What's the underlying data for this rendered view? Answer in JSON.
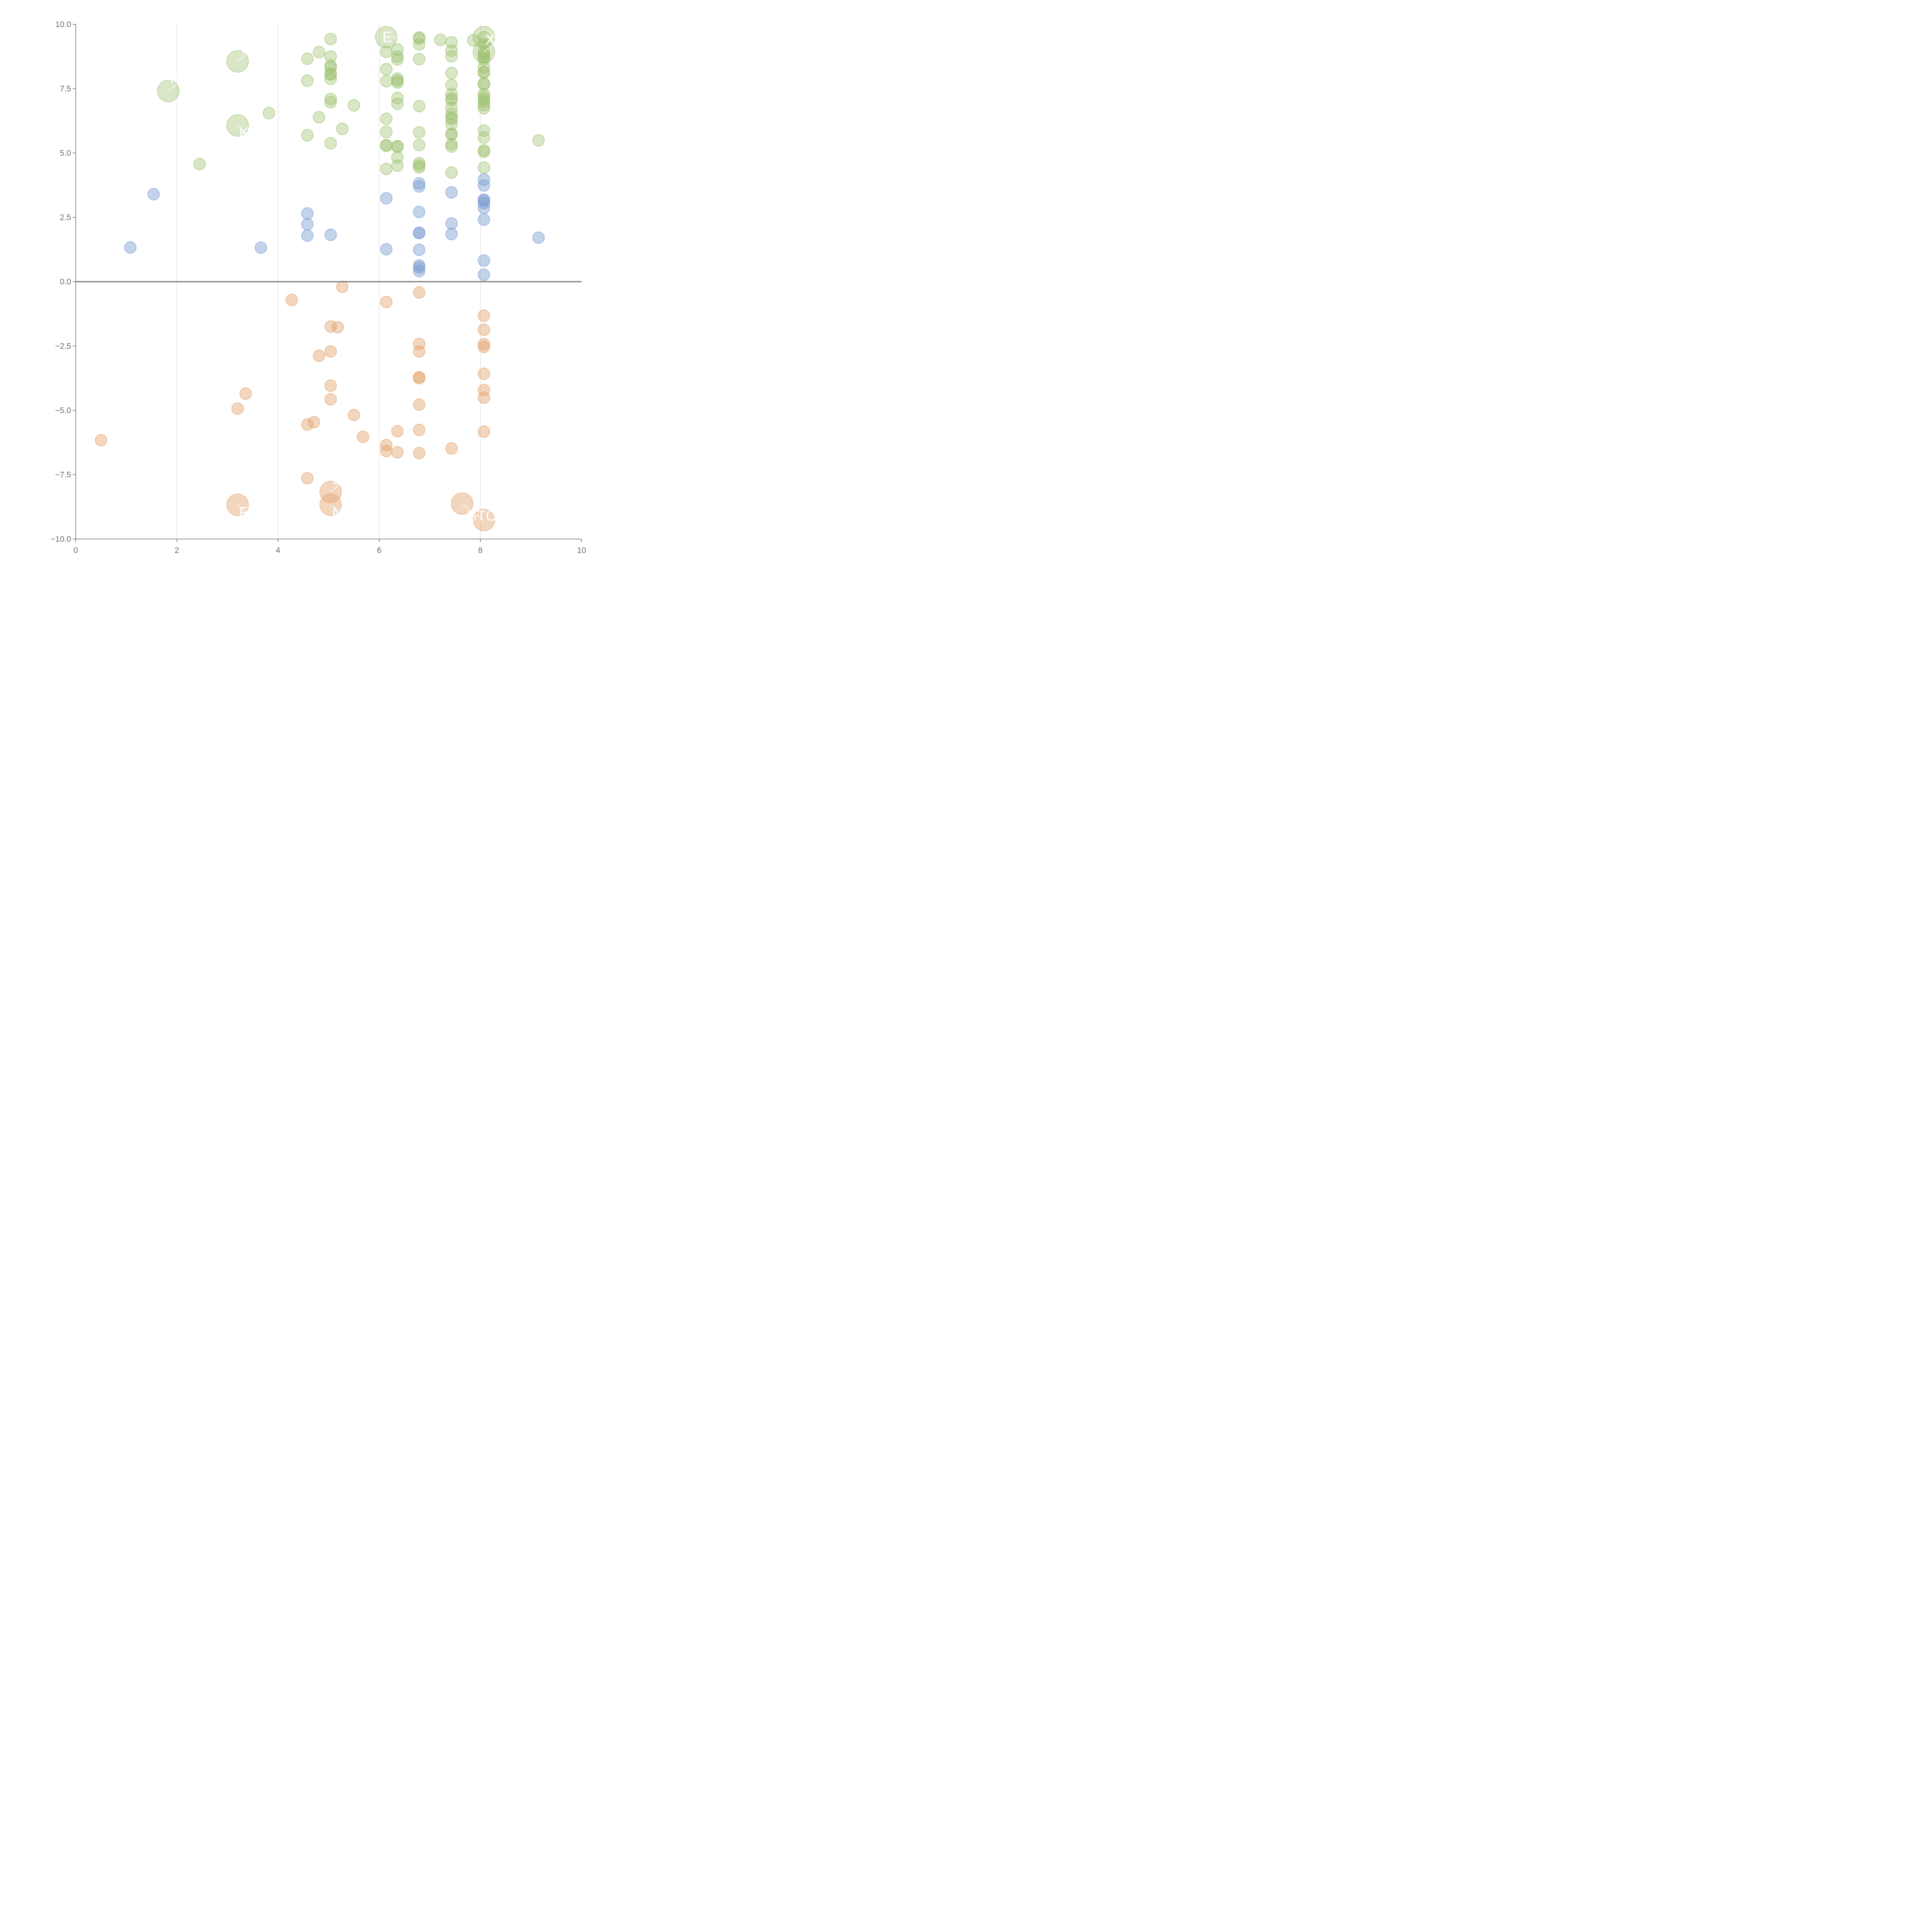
{
  "chart_data": {
    "type": "scatter",
    "title": "",
    "xlabel": "",
    "ylabel": "",
    "xlim": [
      0,
      10
    ],
    "ylim": [
      -10,
      10
    ],
    "x_ticks": [
      "0",
      "2",
      "4",
      "6",
      "8",
      "10"
    ],
    "y_ticks": [
      "10.0",
      "7.5",
      "5.0",
      "2.5",
      "0.0",
      "−2.5",
      "−5.0",
      "−7.5",
      "−10.0"
    ],
    "y_tick_values": [
      10,
      7.5,
      5,
      2.5,
      0,
      -2.5,
      -5,
      -7.5,
      -10
    ],
    "x_tick_values": [
      0,
      2,
      4,
      6,
      8,
      10
    ],
    "vertical_gridlines": [
      2,
      4,
      6,
      8
    ],
    "reference_line": 0,
    "series": [
      {
        "name": "green",
        "color": "#9abf6b",
        "fill": "rgba(154,191,107,0.38)",
        "points": [
          [
            2.45,
            4.57
          ],
          [
            3.82,
            6.55
          ],
          [
            4.58,
            8.66
          ],
          [
            4.58,
            7.81
          ],
          [
            4.58,
            5.69
          ],
          [
            4.81,
            8.92
          ],
          [
            4.81,
            6.39
          ],
          [
            5.04,
            9.43
          ],
          [
            5.04,
            8.75
          ],
          [
            5.04,
            8.4
          ],
          [
            5.04,
            8.32
          ],
          [
            5.04,
            8.08
          ],
          [
            5.04,
            8.05
          ],
          [
            5.04,
            7.88
          ],
          [
            5.04,
            7.1
          ],
          [
            5.04,
            6.97
          ],
          [
            5.04,
            5.38
          ],
          [
            5.27,
            5.94
          ],
          [
            5.5,
            6.85
          ],
          [
            6.14,
            8.93
          ],
          [
            6.14,
            8.26
          ],
          [
            6.14,
            7.79
          ],
          [
            6.14,
            6.33
          ],
          [
            6.14,
            5.82
          ],
          [
            6.14,
            5.31
          ],
          [
            6.14,
            5.28
          ],
          [
            6.14,
            4.38
          ],
          [
            6.36,
            9.02
          ],
          [
            6.36,
            8.75
          ],
          [
            6.36,
            8.64
          ],
          [
            6.36,
            7.89
          ],
          [
            6.36,
            7.81
          ],
          [
            6.36,
            7.74
          ],
          [
            6.36,
            7.14
          ],
          [
            6.36,
            6.91
          ],
          [
            6.36,
            5.27
          ],
          [
            6.36,
            5.24
          ],
          [
            6.36,
            4.83
          ],
          [
            6.36,
            4.51
          ],
          [
            6.79,
            9.49
          ],
          [
            6.79,
            9.45
          ],
          [
            6.79,
            9.22
          ],
          [
            6.79,
            8.65
          ],
          [
            6.79,
            6.82
          ],
          [
            6.79,
            5.8
          ],
          [
            6.79,
            5.31
          ],
          [
            6.79,
            4.61
          ],
          [
            6.79,
            4.52
          ],
          [
            6.79,
            4.44
          ],
          [
            7.21,
            9.4
          ],
          [
            7.43,
            9.3
          ],
          [
            7.43,
            8.98
          ],
          [
            7.43,
            8.76
          ],
          [
            7.43,
            8.11
          ],
          [
            7.43,
            7.64
          ],
          [
            7.43,
            7.29
          ],
          [
            7.43,
            7.12
          ],
          [
            7.43,
            7.05
          ],
          [
            7.43,
            6.75
          ],
          [
            7.43,
            6.52
          ],
          [
            7.43,
            6.38
          ],
          [
            7.43,
            6.31
          ],
          [
            7.43,
            6.12
          ],
          [
            7.43,
            5.75
          ],
          [
            7.43,
            5.72
          ],
          [
            7.43,
            5.34
          ],
          [
            7.43,
            5.25
          ],
          [
            7.43,
            4.24
          ],
          [
            7.86,
            9.38
          ],
          [
            8.07,
            9.5
          ],
          [
            8.07,
            9.24
          ],
          [
            8.07,
            8.92
          ],
          [
            8.07,
            8.82
          ],
          [
            8.07,
            8.71
          ],
          [
            8.07,
            8.63
          ],
          [
            8.07,
            8.33
          ],
          [
            8.07,
            8.14
          ],
          [
            8.07,
            8.12
          ],
          [
            8.07,
            7.71
          ],
          [
            8.07,
            7.66
          ],
          [
            8.07,
            7.28
          ],
          [
            8.07,
            7.18
          ],
          [
            8.07,
            7.08
          ],
          [
            8.07,
            6.99
          ],
          [
            8.07,
            6.86
          ],
          [
            8.07,
            6.74
          ],
          [
            8.07,
            5.87
          ],
          [
            8.07,
            5.6
          ],
          [
            8.07,
            5.1
          ],
          [
            8.07,
            5.05
          ],
          [
            8.07,
            4.43
          ],
          [
            9.15,
            5.49
          ]
        ]
      },
      {
        "name": "blue",
        "color": "#7b9dd1",
        "fill": "rgba(123,157,209,0.45)",
        "points": [
          [
            1.08,
            1.33
          ],
          [
            1.54,
            3.4
          ],
          [
            3.66,
            1.32
          ],
          [
            4.58,
            2.65
          ],
          [
            4.58,
            2.23
          ],
          [
            4.58,
            1.79
          ],
          [
            5.04,
            1.82
          ],
          [
            6.14,
            3.24
          ],
          [
            6.14,
            1.26
          ],
          [
            6.79,
            3.82
          ],
          [
            6.79,
            3.7
          ],
          [
            6.79,
            2.71
          ],
          [
            6.79,
            1.9
          ],
          [
            6.79,
            1.89
          ],
          [
            6.79,
            1.24
          ],
          [
            6.79,
            0.63
          ],
          [
            6.79,
            0.55
          ],
          [
            6.79,
            0.41
          ],
          [
            7.43,
            3.47
          ],
          [
            7.43,
            2.26
          ],
          [
            7.43,
            1.85
          ],
          [
            8.07,
            3.97
          ],
          [
            8.07,
            3.74
          ],
          [
            8.07,
            3.19
          ],
          [
            8.07,
            3.15
          ],
          [
            8.07,
            3.05
          ],
          [
            8.07,
            2.86
          ],
          [
            8.07,
            2.41
          ],
          [
            8.07,
            0.82
          ],
          [
            8.07,
            0.27
          ],
          [
            9.15,
            1.71
          ]
        ]
      },
      {
        "name": "orange",
        "color": "#e3a46e",
        "fill": "rgba(227,164,110,0.45)",
        "points": [
          [
            0.5,
            -6.16
          ],
          [
            3.2,
            -4.93
          ],
          [
            3.36,
            -4.35
          ],
          [
            4.27,
            -0.71
          ],
          [
            4.58,
            -5.55
          ],
          [
            4.58,
            -7.64
          ],
          [
            4.71,
            -5.46
          ],
          [
            4.81,
            -2.88
          ],
          [
            5.04,
            -1.74
          ],
          [
            5.04,
            -2.71
          ],
          [
            5.04,
            -4.04
          ],
          [
            5.04,
            -4.57
          ],
          [
            5.18,
            -1.77
          ],
          [
            5.27,
            -0.2
          ],
          [
            5.5,
            -5.18
          ],
          [
            5.68,
            -6.03
          ],
          [
            6.14,
            -0.79
          ],
          [
            6.14,
            -6.35
          ],
          [
            6.14,
            -6.58
          ],
          [
            6.36,
            -5.81
          ],
          [
            6.36,
            -6.63
          ],
          [
            6.79,
            -0.42
          ],
          [
            6.79,
            -2.42
          ],
          [
            6.79,
            -2.71
          ],
          [
            6.79,
            -3.71
          ],
          [
            6.79,
            -3.75
          ],
          [
            6.79,
            -4.78
          ],
          [
            6.79,
            -5.76
          ],
          [
            6.79,
            -6.66
          ],
          [
            7.43,
            -6.48
          ],
          [
            8.07,
            -1.32
          ],
          [
            8.07,
            -1.87
          ],
          [
            8.07,
            -2.43
          ],
          [
            8.07,
            -2.54
          ],
          [
            8.07,
            -3.58
          ],
          [
            8.07,
            -4.21
          ],
          [
            8.07,
            -4.51
          ],
          [
            8.07,
            -5.83
          ]
        ]
      }
    ],
    "highlighted": [
      {
        "series": "green",
        "x": 1.83,
        "y": 7.41,
        "label": "F",
        "label_side": "upper-right"
      },
      {
        "series": "green",
        "x": 3.2,
        "y": 8.56,
        "label": "T",
        "label_side": "upper-right"
      },
      {
        "series": "green",
        "x": 3.2,
        "y": 6.07,
        "label": "K",
        "label_side": "lower-right"
      },
      {
        "series": "green",
        "x": 6.14,
        "y": 9.5,
        "label": "E",
        "label_side": "left"
      },
      {
        "series": "green",
        "x": 8.07,
        "y": 9.5,
        "label": "",
        "label_side": "left"
      },
      {
        "series": "green",
        "x": 8.07,
        "y": 8.93,
        "label": "X",
        "label_side": "upper-right"
      },
      {
        "series": "orange",
        "x": 5.04,
        "y": -8.17,
        "label": "D",
        "label_side": "upper-right"
      },
      {
        "series": "orange",
        "x": 3.2,
        "y": -8.67,
        "label": "F",
        "label_side": "lower-right"
      },
      {
        "series": "orange",
        "x": 5.04,
        "y": -8.67,
        "label": "M",
        "label_side": "lower-right"
      },
      {
        "series": "orange",
        "x": 7.64,
        "y": -8.62,
        "label": "",
        "label_side": "lower-right"
      },
      {
        "series": "orange",
        "x": 8.07,
        "y": -9.26,
        "label": "STC",
        "label_side": "upper-left"
      }
    ]
  }
}
